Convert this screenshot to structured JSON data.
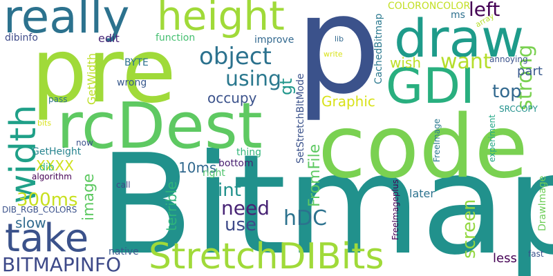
{
  "words": [
    {
      "text": "Bitmap",
      "color": "#21918c",
      "rotated": false
    },
    {
      "text": "code",
      "color": "#7ad151",
      "rotated": false
    },
    {
      "text": "p",
      "color": "#3b528b",
      "rotated": false
    },
    {
      "text": "pre",
      "color": "#a0da39",
      "rotated": false
    },
    {
      "text": "rcDest",
      "color": "#5ec962",
      "rotated": false
    },
    {
      "text": "draw",
      "color": "#1e9b8a",
      "rotated": false
    },
    {
      "text": "really",
      "color": "#2c728e",
      "rotated": false
    },
    {
      "text": "height",
      "color": "#a0da39",
      "rotated": false
    },
    {
      "text": "GDI",
      "color": "#29af7f",
      "rotated": false
    },
    {
      "text": "StretchDIBits",
      "color": "#a0da39",
      "rotated": false
    },
    {
      "text": "take",
      "color": "#3b528b",
      "rotated": false
    },
    {
      "text": "width",
      "color": "#1fa088",
      "rotated": true
    },
    {
      "text": "BITMAPINFO",
      "color": "#3e4a89",
      "rotated": false
    },
    {
      "text": "object",
      "color": "#2c728e",
      "rotated": false
    },
    {
      "text": "strong",
      "color": "#7ad151",
      "rotated": true
    },
    {
      "text": "want",
      "color": "#b5de2b",
      "rotated": false
    },
    {
      "text": "using",
      "color": "#2a788e",
      "rotated": false
    },
    {
      "text": "hDC",
      "color": "#2c728e",
      "rotated": false
    },
    {
      "text": "need",
      "color": "#482475",
      "rotated": false
    },
    {
      "text": "use",
      "color": "#3e4a89",
      "rotated": false
    },
    {
      "text": "int",
      "color": "#21918c",
      "rotated": false
    },
    {
      "text": "image",
      "color": "#5ec962",
      "rotated": true
    },
    {
      "text": "screen",
      "color": "#93d741",
      "rotated": true
    },
    {
      "text": "300ms",
      "color": "#c8e020",
      "rotated": false
    },
    {
      "text": "top",
      "color": "#31688e",
      "rotated": false
    },
    {
      "text": "left",
      "color": "#440154",
      "rotated": false
    },
    {
      "text": "FromFile",
      "color": "#5ec962",
      "rotated": true
    },
    {
      "text": "gt",
      "color": "#1f968b",
      "rotated": true
    },
    {
      "text": "slow",
      "color": "#306a8e",
      "rotated": false
    },
    {
      "text": "Graphic",
      "color": "#d8e219",
      "rotated": false
    },
    {
      "text": "occupy",
      "color": "#3b528b",
      "rotated": false
    },
    {
      "text": "terrible",
      "color": "#2fb47c",
      "rotated": true
    },
    {
      "text": "wish",
      "color": "#bddf26",
      "rotated": false
    },
    {
      "text": "XXXX",
      "color": "#d0e11c",
      "rotated": false
    },
    {
      "text": "10ms",
      "color": "#31688e",
      "rotated": false
    },
    {
      "text": "part",
      "color": "#38588c",
      "rotated": false
    },
    {
      "text": "GetWidth",
      "color": "#bddf26",
      "rotated": true
    },
    {
      "text": "CachedBitmap",
      "color": "#2a788e",
      "rotated": true
    },
    {
      "text": "SetStretchBltMode",
      "color": "#3b528b",
      "rotated": true
    },
    {
      "text": "later",
      "color": "#2c728e",
      "rotated": false
    },
    {
      "text": "less",
      "color": "#440154",
      "rotated": false
    },
    {
      "text": "edit",
      "color": "#482878",
      "rotated": false
    },
    {
      "text": "dibinfo",
      "color": "#3e4a89",
      "rotated": false
    },
    {
      "text": "function",
      "color": "#44bf70",
      "rotated": false
    },
    {
      "text": "improve",
      "color": "#31688e",
      "rotated": false
    },
    {
      "text": "COLORONCOLOR",
      "color": "#c2df23",
      "rotated": false
    },
    {
      "text": "ms",
      "color": "#2d708e",
      "rotated": false
    },
    {
      "text": "BYTE",
      "color": "#2c728e",
      "rotated": false
    },
    {
      "text": "wrong",
      "color": "#38598c",
      "rotated": false
    },
    {
      "text": "thing",
      "color": "#32b67a",
      "rotated": false
    },
    {
      "text": "bottom",
      "color": "#482071",
      "rotated": false
    },
    {
      "text": "right",
      "color": "#4ec36b",
      "rotated": false
    },
    {
      "text": "GetHeight",
      "color": "#25838e",
      "rotated": false
    },
    {
      "text": "dib",
      "color": "#37b878",
      "rotated": false
    },
    {
      "text": "algorithm",
      "color": "#440154",
      "rotated": false
    },
    {
      "text": "DIB_RGB_COLORS",
      "color": "#3b528b",
      "rotated": false
    },
    {
      "text": "native",
      "color": "#38598c",
      "rotated": false
    },
    {
      "text": "call",
      "color": "#3e4989",
      "rotated": false
    },
    {
      "text": "now",
      "color": "#3b528b",
      "rotated": false
    },
    {
      "text": "pass",
      "color": "#2c728e",
      "rotated": false
    },
    {
      "text": "bits",
      "color": "#d8e219",
      "rotated": false
    },
    {
      "text": "lib",
      "color": "#31688e",
      "rotated": false
    },
    {
      "text": "write",
      "color": "#d8e219",
      "rotated": false
    },
    {
      "text": "array",
      "color": "#b5de2b",
      "rotated": true
    },
    {
      "text": "annoying",
      "color": "#3b528b",
      "rotated": false
    },
    {
      "text": "SRCCOPY",
      "color": "#21918c",
      "rotated": false
    },
    {
      "text": "experiment",
      "color": "#22a785",
      "rotated": true
    },
    {
      "text": "FreeImage",
      "color": "#2a788e",
      "rotated": true
    },
    {
      "text": "FreeImageplus",
      "color": "#440154",
      "rotated": true
    },
    {
      "text": "DrawImage",
      "color": "#6ece58",
      "rotated": true
    },
    {
      "text": "fast",
      "color": "#3b528b",
      "rotated": false
    }
  ]
}
